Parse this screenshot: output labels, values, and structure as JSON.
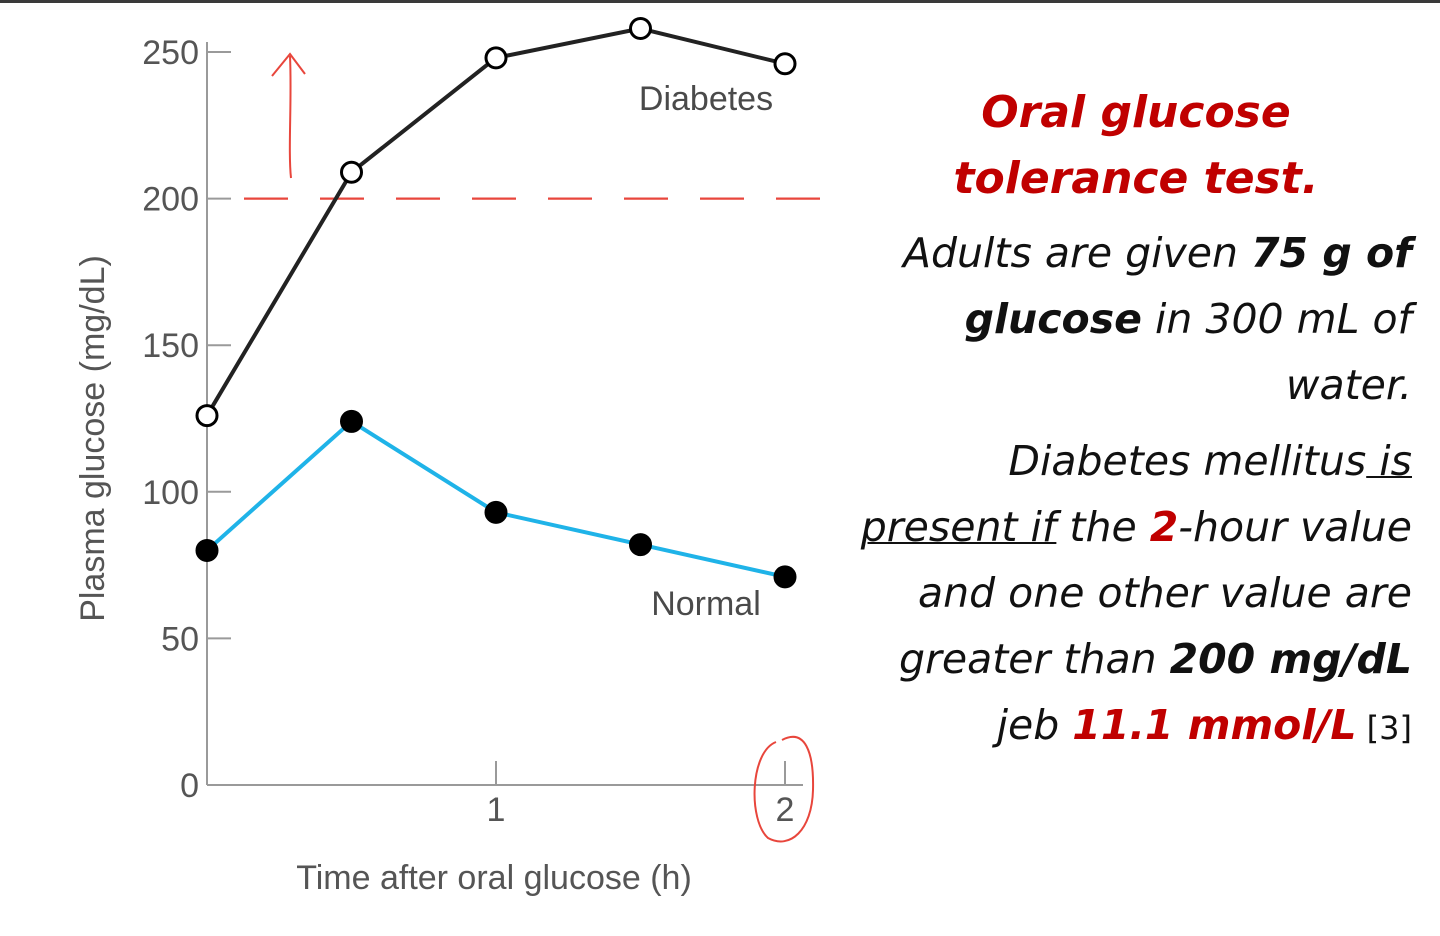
{
  "chart_data": {
    "type": "line",
    "xlabel": "Time after oral glucose (h)",
    "ylabel": "Plasma glucose (mg/dL)",
    "xlim": [
      0,
      2
    ],
    "ylim": [
      0,
      250
    ],
    "x_ticks": [
      1,
      2
    ],
    "y_ticks": [
      0,
      50,
      100,
      150,
      200,
      250
    ],
    "grid": false,
    "threshold_line": {
      "y": 200,
      "style": "dashed",
      "color": "#e8463c"
    },
    "series": [
      {
        "name": "Diabetes",
        "marker": "open-circle",
        "color": "#222222",
        "x": [
          0,
          0.5,
          1,
          1.5,
          2
        ],
        "y": [
          126,
          209,
          248,
          258,
          246
        ]
      },
      {
        "name": "Normal",
        "marker": "filled-circle",
        "color": "#1fb3e8",
        "x": [
          0,
          0.5,
          1,
          1.5,
          2
        ],
        "y": [
          80,
          124,
          93,
          82,
          71
        ]
      }
    ],
    "annotations": [
      "up-arrow-above-threshold",
      "circle-around-2-hour-tick"
    ]
  },
  "panel": {
    "title": "Oral glucose tolerance test.",
    "p1_a": "Adults are given ",
    "p1_b": "75 g of glucose",
    "p1_c": " in 300 mL of water.",
    "p2_a": "Diabetes mellitus",
    "p2_b": " is present if",
    "p2_c": " the ",
    "p2_d": "2",
    "p2_e": "-hour value and one other value are greater than ",
    "p2_f": "200 mg/dL",
    "p2_g": "jeb ",
    "p2_h": "11.1 mmol/L",
    "p2_i": " [3]"
  },
  "colors": {
    "accent_red": "#c00000",
    "annotation_red": "#e8463c",
    "normal_blue": "#1fb3e8"
  }
}
